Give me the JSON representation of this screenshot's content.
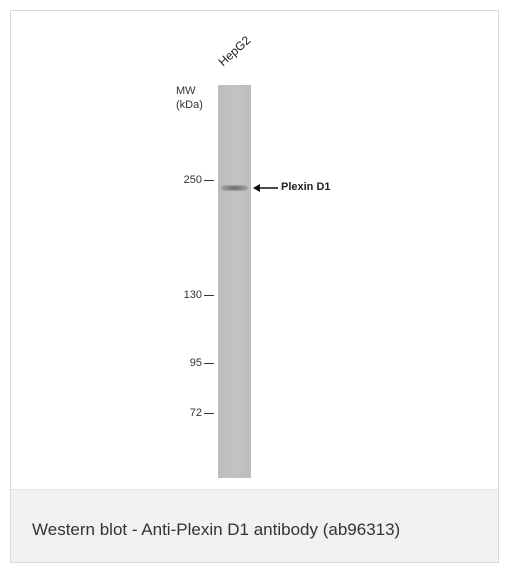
{
  "blot": {
    "lane_label": "HepG2",
    "mw_label_line1": "MW",
    "mw_label_line2": "(kDa)",
    "markers": [
      {
        "value": "250"
      },
      {
        "value": "130"
      },
      {
        "value": "95"
      },
      {
        "value": "72"
      }
    ],
    "band_annotation": "Plexin D1"
  },
  "caption": {
    "text": "Western blot - Anti-Plexin D1 antibody (ab96313)"
  },
  "colors": {
    "lane_background": "#c0c0c0",
    "band": "#6c6c6c",
    "caption_background": "#f1f1f1",
    "text": "#333333"
  },
  "icons": {
    "annotation_arrow": "arrow-left-icon"
  }
}
